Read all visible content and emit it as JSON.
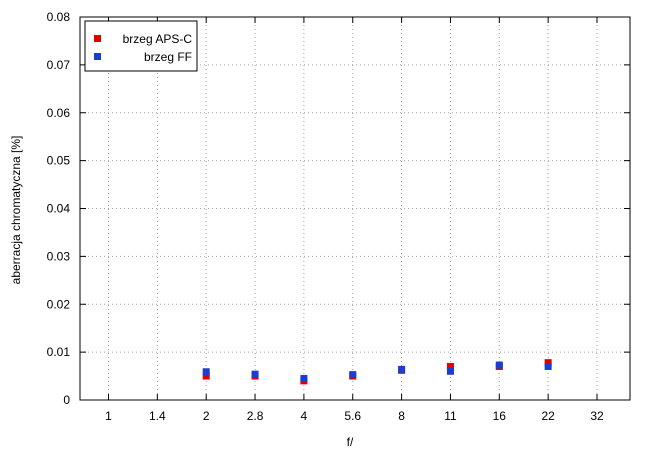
{
  "chart_data": {
    "type": "scatter",
    "xlabel": "f/",
    "ylabel": "aberracja chromatyczna [%]",
    "categories": [
      "1",
      "1.4",
      "2",
      "2.8",
      "4",
      "5.6",
      "8",
      "11",
      "16",
      "22",
      "32"
    ],
    "ylim": [
      0,
      0.08
    ],
    "yticks": [
      "0",
      "0.01",
      "0.02",
      "0.03",
      "0.04",
      "0.05",
      "0.06",
      "0.07",
      "0.08"
    ],
    "grid": true,
    "legend_position": "top-left",
    "series": [
      {
        "name": "brzeg APS-C",
        "color": "#e00000",
        "points": [
          {
            "x": "2",
            "y": 0.005
          },
          {
            "x": "2.8",
            "y": 0.005
          },
          {
            "x": "4",
            "y": 0.004
          },
          {
            "x": "5.6",
            "y": 0.005
          },
          {
            "x": "8",
            "y": 0.0062
          },
          {
            "x": "11",
            "y": 0.007
          },
          {
            "x": "16",
            "y": 0.007
          },
          {
            "x": "22",
            "y": 0.0078
          }
        ]
      },
      {
        "name": "brzeg FF",
        "color": "#1a3fd0",
        "points": [
          {
            "x": "2",
            "y": 0.0059
          },
          {
            "x": "2.8",
            "y": 0.0054
          },
          {
            "x": "4",
            "y": 0.0045
          },
          {
            "x": "5.6",
            "y": 0.0053
          },
          {
            "x": "8",
            "y": 0.0064
          },
          {
            "x": "11",
            "y": 0.006
          },
          {
            "x": "16",
            "y": 0.0073
          },
          {
            "x": "22",
            "y": 0.007
          }
        ]
      }
    ]
  }
}
